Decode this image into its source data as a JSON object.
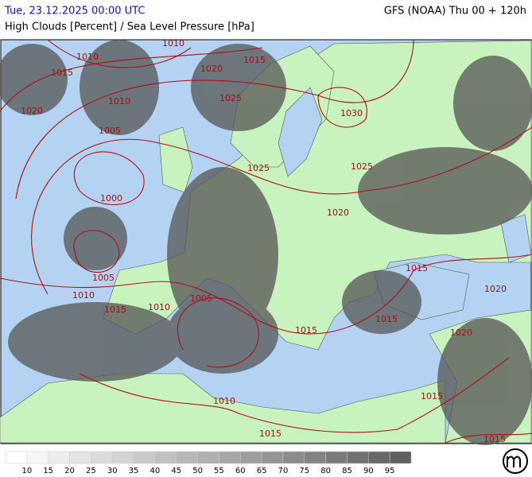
{
  "header": {
    "date": "Tue, 23.12.2025 00:00 UTC",
    "model": "GFS (NOAA) Thu 00 + 120h",
    "subtitle": "High Clouds [Percent] / Sea Level Pressure [hPa]"
  },
  "isobar_labels": [
    "1010",
    "1010",
    "1015",
    "1020",
    "1015",
    "1010",
    "1025",
    "1020",
    "1005",
    "1030",
    "1025",
    "1025",
    "1000",
    "1020",
    "1005",
    "1010",
    "1015",
    "1010",
    "1005",
    "1015",
    "1020",
    "1015",
    "1015",
    "1020",
    "1015",
    "1010",
    "1015",
    "1015"
  ],
  "legend": {
    "labels": [
      10,
      15,
      20,
      25,
      30,
      35,
      40,
      45,
      50,
      55,
      60,
      65,
      70,
      75,
      80,
      85,
      90,
      95
    ]
  }
}
